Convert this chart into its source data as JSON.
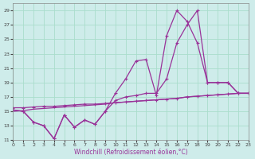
{
  "xlabel": "Windchill (Refroidissement éolien,°C)",
  "background_color": "#ceecea",
  "grid_color": "#aaddcc",
  "line_color": "#993399",
  "xlim": [
    0,
    23
  ],
  "ylim": [
    11,
    30
  ],
  "yticks": [
    11,
    13,
    15,
    17,
    19,
    21,
    23,
    25,
    27,
    29
  ],
  "xticks": [
    0,
    1,
    2,
    3,
    4,
    5,
    6,
    7,
    8,
    9,
    10,
    11,
    12,
    13,
    14,
    15,
    16,
    17,
    18,
    19,
    20,
    21,
    22,
    23
  ],
  "line1_x": [
    0,
    1,
    2,
    3,
    4,
    5,
    6,
    7,
    8,
    9,
    10,
    11,
    12,
    13,
    14,
    15,
    16,
    17,
    18,
    19,
    20,
    21,
    22,
    23
  ],
  "line1_y": [
    15.2,
    15.0,
    13.5,
    13.0,
    11.2,
    14.5,
    12.8,
    13.8,
    13.2,
    15.0,
    17.5,
    19.5,
    22.0,
    22.2,
    17.2,
    25.5,
    29.0,
    27.5,
    24.5,
    19.0,
    19.0,
    19.0,
    17.5,
    17.5
  ],
  "line2_x": [
    0,
    1,
    2,
    3,
    4,
    5,
    6,
    7,
    8,
    9,
    10,
    11,
    12,
    13,
    14,
    15,
    16,
    17,
    18,
    19,
    20,
    21,
    22,
    23
  ],
  "line2_y": [
    15.2,
    15.0,
    13.5,
    13.0,
    11.2,
    14.5,
    12.8,
    13.8,
    13.2,
    15.0,
    16.5,
    17.0,
    17.2,
    17.5,
    17.5,
    19.5,
    24.5,
    27.0,
    29.0,
    19.0,
    19.0,
    19.0,
    17.5,
    17.5
  ],
  "line3_x": [
    0,
    1,
    2,
    3,
    4,
    5,
    6,
    7,
    8,
    9,
    10,
    11,
    12,
    13,
    14,
    15,
    16,
    17,
    18,
    19,
    20,
    21,
    22,
    23
  ],
  "line3_y": [
    15.5,
    15.5,
    15.6,
    15.7,
    15.7,
    15.8,
    15.9,
    16.0,
    16.0,
    16.1,
    16.2,
    16.3,
    16.4,
    16.5,
    16.6,
    16.7,
    16.8,
    17.0,
    17.1,
    17.2,
    17.3,
    17.4,
    17.5,
    17.5
  ],
  "line4_x": [
    0,
    1,
    2,
    3,
    4,
    5,
    6,
    7,
    8,
    9,
    10,
    11,
    12,
    13,
    14,
    15,
    16,
    17,
    18,
    19,
    20,
    21,
    22,
    23
  ],
  "line4_y": [
    15.0,
    15.1,
    15.3,
    15.4,
    15.5,
    15.6,
    15.7,
    15.8,
    15.9,
    16.0,
    16.2,
    16.3,
    16.4,
    16.5,
    16.6,
    16.7,
    16.8,
    17.0,
    17.1,
    17.2,
    17.3,
    17.4,
    17.5,
    17.5
  ]
}
